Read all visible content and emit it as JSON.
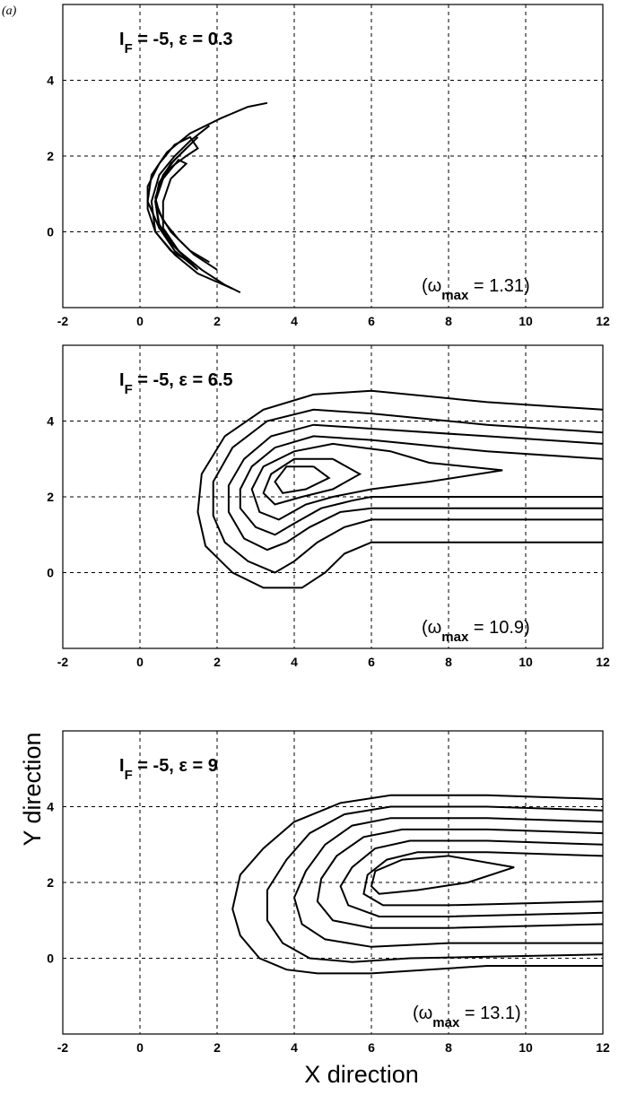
{
  "figure": {
    "panel_label": "(a)",
    "xlabel": "X direction",
    "ylabel": "Y direction"
  },
  "chart_data": [
    {
      "type": "contour",
      "title_parts": {
        "i": "I",
        "sub": "F",
        "rest": " = -5,  ε = 0.3"
      },
      "annotation": {
        "open": "(ω",
        "sub": "max",
        "rest": " =  1.31)"
      },
      "omega_max": 1.31,
      "xlim": [
        -2,
        12
      ],
      "ylim": [
        -2,
        6
      ],
      "xticks": [
        -2,
        0,
        2,
        4,
        6,
        8,
        10,
        12
      ],
      "yticks": [
        0,
        2,
        4
      ],
      "grid": true,
      "contours": [
        [
          [
            2.6,
            -1.6
          ],
          [
            2.2,
            -1.4
          ],
          [
            1.6,
            -1.0
          ],
          [
            1.0,
            -0.5
          ],
          [
            0.5,
            0.1
          ],
          [
            0.2,
            0.8
          ],
          [
            0.3,
            1.5
          ],
          [
            0.7,
            2.1
          ],
          [
            1.3,
            2.6
          ],
          [
            2.1,
            3.0
          ],
          [
            2.8,
            3.3
          ],
          [
            3.3,
            3.4
          ]
        ],
        [
          [
            2.4,
            -1.5
          ],
          [
            1.5,
            -1.1
          ],
          [
            0.9,
            -0.6
          ],
          [
            0.4,
            0.0
          ],
          [
            0.3,
            0.8
          ],
          [
            0.5,
            1.5
          ],
          [
            0.9,
            2.0
          ],
          [
            1.3,
            2.4
          ],
          [
            1.8,
            2.8
          ]
        ],
        [
          [
            2.0,
            -1.0
          ],
          [
            1.4,
            -0.6
          ],
          [
            1.0,
            -0.2
          ],
          [
            0.6,
            0.3
          ],
          [
            0.4,
            0.8
          ],
          [
            0.5,
            1.3
          ],
          [
            0.8,
            1.8
          ],
          [
            1.2,
            2.2
          ],
          [
            1.5,
            2.5
          ]
        ],
        [
          [
            1.8,
            -0.8
          ],
          [
            1.3,
            -0.5
          ],
          [
            0.8,
            0.0
          ],
          [
            0.5,
            0.5
          ],
          [
            0.4,
            0.9
          ],
          [
            0.6,
            1.5
          ],
          [
            0.9,
            1.9
          ],
          [
            1.2,
            2.2
          ]
        ],
        [
          [
            1.3,
            -0.8
          ],
          [
            0.8,
            -0.3
          ],
          [
            0.5,
            0.2
          ],
          [
            0.4,
            0.8
          ],
          [
            0.5,
            1.3
          ],
          [
            0.8,
            1.7
          ],
          [
            1.2,
            2.0
          ],
          [
            1.5,
            2.2
          ],
          [
            1.3,
            2.5
          ],
          [
            0.9,
            2.3
          ],
          [
            0.5,
            1.8
          ],
          [
            0.2,
            1.2
          ],
          [
            0.2,
            0.6
          ],
          [
            0.4,
            0.0
          ],
          [
            0.8,
            -0.5
          ],
          [
            1.3,
            -0.8
          ]
        ],
        [
          [
            1.5,
            -1.0
          ],
          [
            1.0,
            -0.5
          ],
          [
            0.6,
            0.1
          ],
          [
            0.6,
            0.8
          ],
          [
            0.8,
            1.4
          ],
          [
            1.2,
            1.8
          ],
          [
            1.0,
            1.9
          ],
          [
            0.6,
            1.4
          ],
          [
            0.4,
            0.8
          ],
          [
            0.5,
            0.1
          ],
          [
            0.9,
            -0.5
          ],
          [
            1.5,
            -1.0
          ]
        ]
      ]
    },
    {
      "type": "contour",
      "title_parts": {
        "i": "I",
        "sub": "F",
        "rest": " = -5,  ε = 6.5"
      },
      "annotation": {
        "open": "(ω",
        "sub": "max",
        "rest": " =  10.9)"
      },
      "omega_max": 10.9,
      "xlim": [
        -2,
        12
      ],
      "ylim": [
        -2,
        6
      ],
      "xticks": [
        -2,
        0,
        2,
        4,
        6,
        8,
        10,
        12
      ],
      "yticks": [
        0,
        2,
        4
      ],
      "grid": true,
      "contours": [
        [
          [
            12,
            4.3
          ],
          [
            9,
            4.5
          ],
          [
            6,
            4.8
          ],
          [
            4.5,
            4.7
          ],
          [
            3.2,
            4.3
          ],
          [
            2.2,
            3.6
          ],
          [
            1.6,
            2.6
          ],
          [
            1.5,
            1.6
          ],
          [
            1.7,
            0.7
          ],
          [
            2.4,
            0.0
          ],
          [
            3.2,
            -0.4
          ],
          [
            4.2,
            -0.4
          ],
          [
            4.8,
            0.0
          ],
          [
            5.3,
            0.5
          ],
          [
            6,
            0.8
          ],
          [
            8,
            0.8
          ],
          [
            12,
            0.8
          ]
        ],
        [
          [
            12,
            3.7
          ],
          [
            9,
            3.9
          ],
          [
            6,
            4.2
          ],
          [
            4.5,
            4.3
          ],
          [
            3.3,
            4.0
          ],
          [
            2.4,
            3.3
          ],
          [
            1.9,
            2.4
          ],
          [
            1.9,
            1.5
          ],
          [
            2.2,
            0.8
          ],
          [
            2.8,
            0.3
          ],
          [
            3.5,
            0.0
          ],
          [
            4.0,
            0.3
          ],
          [
            4.6,
            0.8
          ],
          [
            5.3,
            1.2
          ],
          [
            6,
            1.4
          ],
          [
            9,
            1.4
          ],
          [
            12,
            1.4
          ]
        ],
        [
          [
            12,
            3.4
          ],
          [
            9,
            3.6
          ],
          [
            6,
            3.8
          ],
          [
            4.5,
            3.9
          ],
          [
            3.4,
            3.6
          ],
          [
            2.7,
            3.0
          ],
          [
            2.3,
            2.3
          ],
          [
            2.3,
            1.6
          ],
          [
            2.7,
            0.9
          ],
          [
            3.3,
            0.6
          ],
          [
            3.8,
            0.8
          ],
          [
            4.4,
            1.2
          ],
          [
            5.2,
            1.6
          ],
          [
            6,
            1.7
          ],
          [
            9,
            1.7
          ],
          [
            12,
            1.7
          ]
        ],
        [
          [
            12,
            3.0
          ],
          [
            9,
            3.2
          ],
          [
            6,
            3.5
          ],
          [
            4.5,
            3.6
          ],
          [
            3.5,
            3.3
          ],
          [
            2.9,
            2.8
          ],
          [
            2.6,
            2.2
          ],
          [
            2.6,
            1.7
          ],
          [
            3.0,
            1.2
          ],
          [
            3.5,
            1.0
          ],
          [
            4.0,
            1.3
          ],
          [
            4.7,
            1.7
          ],
          [
            5.5,
            1.9
          ],
          [
            6,
            2.0
          ],
          [
            9,
            2.0
          ],
          [
            12,
            2.0
          ]
        ],
        [
          [
            6.5,
            3.2
          ],
          [
            5,
            3.4
          ],
          [
            4,
            3.2
          ],
          [
            3.2,
            2.8
          ],
          [
            2.9,
            2.2
          ],
          [
            3.1,
            1.6
          ],
          [
            3.6,
            1.4
          ],
          [
            4.3,
            1.8
          ],
          [
            5,
            2.0
          ],
          [
            6,
            2.2
          ],
          [
            7.5,
            2.4
          ],
          [
            9.4,
            2.7
          ],
          [
            7.5,
            2.9
          ],
          [
            6.5,
            3.2
          ]
        ],
        [
          [
            5,
            3.0
          ],
          [
            4,
            3.0
          ],
          [
            3.4,
            2.6
          ],
          [
            3.2,
            2.1
          ],
          [
            3.5,
            1.8
          ],
          [
            4.2,
            2.0
          ],
          [
            5,
            2.2
          ],
          [
            5.7,
            2.6
          ],
          [
            5,
            3.0
          ]
        ],
        [
          [
            4.5,
            2.8
          ],
          [
            3.8,
            2.8
          ],
          [
            3.5,
            2.4
          ],
          [
            3.7,
            2.1
          ],
          [
            4.3,
            2.2
          ],
          [
            4.9,
            2.5
          ],
          [
            4.5,
            2.8
          ]
        ]
      ]
    },
    {
      "type": "contour",
      "title_parts": {
        "i": "I",
        "sub": "F",
        "rest": " = -5,  ε = 9"
      },
      "annotation": {
        "open": "(ω",
        "sub": "max",
        "rest": " =  13.1)"
      },
      "omega_max": 13.1,
      "xlim": [
        -2,
        12
      ],
      "ylim": [
        -2,
        6
      ],
      "xticks": [
        -2,
        0,
        2,
        4,
        6,
        8,
        10,
        12
      ],
      "yticks": [
        0,
        2,
        4
      ],
      "grid": true,
      "contours": [
        [
          [
            12,
            4.2
          ],
          [
            9,
            4.3
          ],
          [
            6.5,
            4.3
          ],
          [
            5.2,
            4.1
          ],
          [
            4.0,
            3.6
          ],
          [
            3.2,
            2.9
          ],
          [
            2.6,
            2.2
          ],
          [
            2.4,
            1.3
          ],
          [
            2.6,
            0.6
          ],
          [
            3.1,
            0.0
          ],
          [
            3.8,
            -0.3
          ],
          [
            4.6,
            -0.4
          ],
          [
            6,
            -0.4
          ],
          [
            9,
            -0.2
          ],
          [
            12,
            -0.2
          ]
        ],
        [
          [
            12,
            3.9
          ],
          [
            9,
            4.0
          ],
          [
            6.5,
            4.0
          ],
          [
            5.3,
            3.8
          ],
          [
            4.4,
            3.3
          ],
          [
            3.8,
            2.6
          ],
          [
            3.3,
            1.8
          ],
          [
            3.3,
            1.0
          ],
          [
            3.7,
            0.4
          ],
          [
            4.4,
            0.0
          ],
          [
            5.5,
            -0.1
          ],
          [
            7,
            0.0
          ],
          [
            12,
            0.1
          ]
        ],
        [
          [
            12,
            3.6
          ],
          [
            9,
            3.7
          ],
          [
            6.5,
            3.7
          ],
          [
            5.5,
            3.5
          ],
          [
            4.8,
            3.0
          ],
          [
            4.3,
            2.3
          ],
          [
            4.0,
            1.6
          ],
          [
            4.2,
            0.9
          ],
          [
            4.8,
            0.5
          ],
          [
            6,
            0.3
          ],
          [
            8,
            0.4
          ],
          [
            12,
            0.4
          ]
        ],
        [
          [
            12,
            3.3
          ],
          [
            9,
            3.4
          ],
          [
            6.8,
            3.4
          ],
          [
            5.8,
            3.2
          ],
          [
            5.1,
            2.7
          ],
          [
            4.7,
            2.1
          ],
          [
            4.6,
            1.5
          ],
          [
            5.0,
            1.0
          ],
          [
            6,
            0.8
          ],
          [
            8,
            0.8
          ],
          [
            12,
            0.9
          ]
        ],
        [
          [
            12,
            3.0
          ],
          [
            9,
            3.1
          ],
          [
            7,
            3.1
          ],
          [
            6.1,
            2.9
          ],
          [
            5.5,
            2.4
          ],
          [
            5.2,
            1.9
          ],
          [
            5.4,
            1.4
          ],
          [
            6.2,
            1.1
          ],
          [
            8,
            1.1
          ],
          [
            12,
            1.2
          ]
        ],
        [
          [
            12,
            2.7
          ],
          [
            9,
            2.8
          ],
          [
            7.2,
            2.8
          ],
          [
            6.4,
            2.6
          ],
          [
            5.9,
            2.2
          ],
          [
            5.8,
            1.7
          ],
          [
            6.3,
            1.4
          ],
          [
            8,
            1.4
          ],
          [
            12,
            1.5
          ]
        ],
        [
          [
            8,
            2.7
          ],
          [
            6.8,
            2.6
          ],
          [
            6.1,
            2.3
          ],
          [
            6.0,
            1.9
          ],
          [
            6.2,
            1.7
          ],
          [
            7.2,
            1.8
          ],
          [
            8.5,
            2.0
          ],
          [
            9.7,
            2.4
          ],
          [
            8,
            2.7
          ]
        ]
      ]
    }
  ]
}
